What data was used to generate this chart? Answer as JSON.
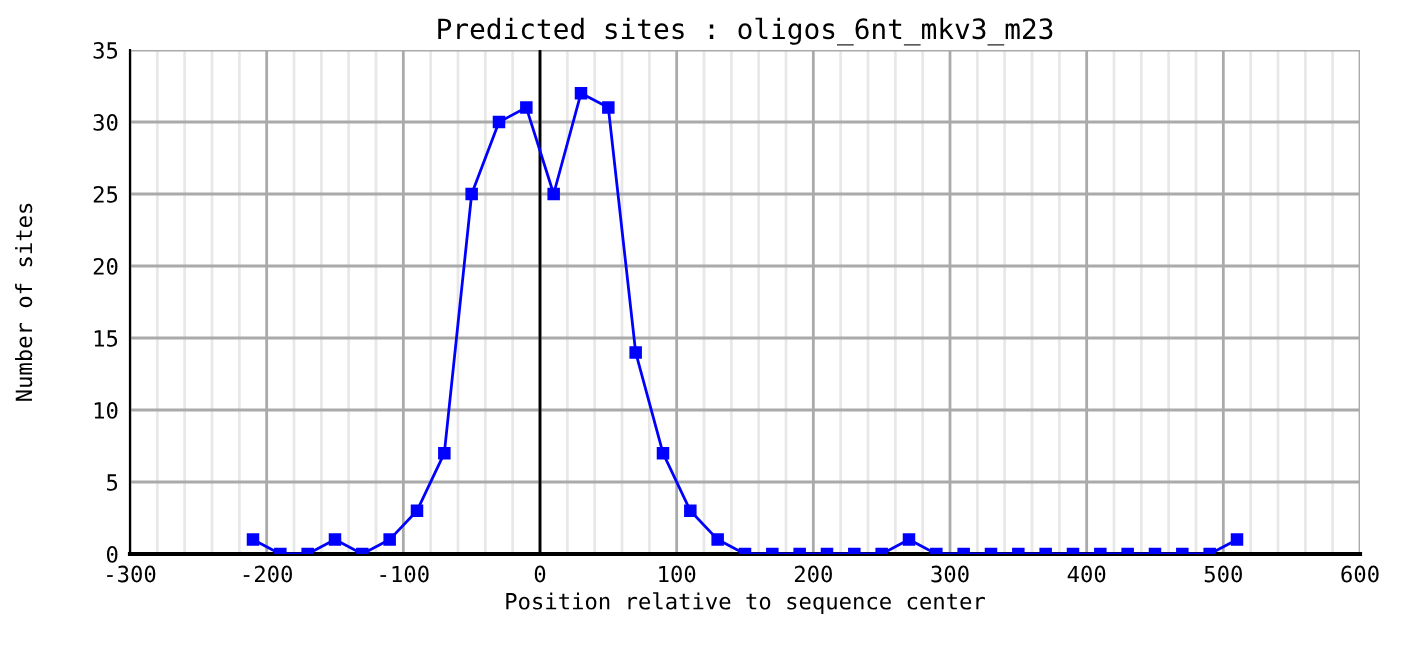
{
  "chart_data": {
    "type": "line",
    "title": "Predicted sites : oligos_6nt_mkv3_m23",
    "xlabel": "Position relative to sequence center",
    "ylabel": "Number of sites",
    "series": [
      {
        "color": "#0000ff",
        "x": [
          -210,
          -190,
          -170,
          -150,
          -130,
          -110,
          -90,
          -70,
          -50,
          -30,
          -10,
          10,
          30,
          50,
          70,
          90,
          110,
          130,
          150,
          170,
          190,
          210,
          230,
          250,
          270,
          290,
          310,
          330,
          350,
          370,
          390,
          410,
          430,
          450,
          470,
          490,
          510
        ],
        "values": [
          1,
          0,
          0,
          1,
          0,
          1,
          3,
          7,
          25,
          30,
          31,
          25,
          32,
          31,
          14,
          7,
          3,
          1,
          0,
          0,
          0,
          0,
          0,
          0,
          1,
          0,
          0,
          0,
          0,
          0,
          0,
          0,
          0,
          0,
          0,
          0,
          1
        ]
      }
    ],
    "xlim": [
      -300,
      600
    ],
    "ylim": [
      0,
      35
    ],
    "xticks": [
      -300,
      {
        "value": -280,
        "label": null
      },
      {
        "value": -260,
        "label": null
      },
      {
        "value": -240,
        "label": null
      },
      {
        "value": -220,
        "label": null
      },
      -200,
      {
        "value": -180,
        "label": null
      },
      {
        "value": -160,
        "label": null
      },
      {
        "value": -140,
        "label": null
      },
      {
        "value": -120,
        "label": null
      },
      -100,
      {
        "value": -80,
        "label": null
      },
      {
        "value": -60,
        "label": null
      },
      {
        "value": -40,
        "label": null
      },
      {
        "value": -20,
        "label": null
      },
      0,
      {
        "value": 20,
        "label": null
      },
      {
        "value": 40,
        "label": null
      },
      {
        "value": 60,
        "label": null
      },
      {
        "value": 80,
        "label": null
      },
      100,
      {
        "value": 120,
        "label": null
      },
      {
        "value": 140,
        "label": null
      },
      {
        "value": 160,
        "label": null
      },
      {
        "value": 180,
        "label": null
      },
      200,
      {
        "value": 220,
        "label": null
      },
      {
        "value": 240,
        "label": null
      },
      {
        "value": 260,
        "label": null
      },
      {
        "value": 280,
        "label": null
      },
      300,
      {
        "value": 320,
        "label": null
      },
      {
        "value": 340,
        "label": null
      },
      {
        "value": 360,
        "label": null
      },
      {
        "value": 380,
        "label": null
      },
      400,
      {
        "value": 420,
        "label": null
      },
      {
        "value": 440,
        "label": null
      },
      {
        "value": 460,
        "label": null
      },
      {
        "value": 480,
        "label": null
      },
      500,
      {
        "value": 520,
        "label": null
      },
      {
        "value": 540,
        "label": null
      },
      {
        "value": 560,
        "label": null
      },
      {
        "value": 580,
        "label": null
      },
      600
    ],
    "yticks": [
      0,
      5,
      10,
      15,
      20,
      25,
      30,
      35
    ],
    "ref_lines": [
      {
        "axis": "x",
        "value": 0,
        "color": "#000000"
      }
    ],
    "grid": true,
    "marker": "square",
    "line_style": "solid"
  }
}
